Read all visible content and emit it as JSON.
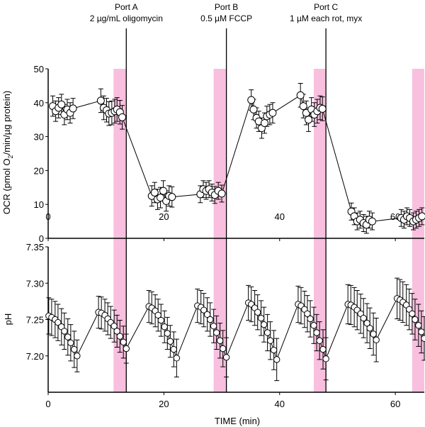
{
  "colors": {
    "injection_band": "#f9bfdf",
    "marker_fill": "#ffffff",
    "line": "#000000"
  },
  "ports": [
    {
      "name": "Port A",
      "label": "2 µg/mL oligomycin",
      "time": 13.5
    },
    {
      "name": "Port B",
      "label": "0.5 µM FCCP",
      "time": 30.8
    },
    {
      "name": "Port C",
      "label": "1 µM each rot, myx",
      "time": 48.0
    }
  ],
  "bands": [
    [
      11.3,
      13.5
    ],
    [
      28.6,
      30.8
    ],
    [
      45.9,
      48.0
    ],
    [
      62.9,
      65.0
    ]
  ],
  "chart_data": [
    {
      "type": "scatter",
      "ylabel_main": "OCR (pmol O",
      "ylabel_sub": "2",
      "ylabel_tail": "/min/µg protein)",
      "xlabel": "",
      "xlim": [
        0,
        65
      ],
      "ylim": [
        0,
        50
      ],
      "xticks": [
        "0",
        "20",
        "40",
        "60"
      ],
      "yticks": [
        "0",
        "10",
        "20",
        "30",
        "40",
        "50"
      ],
      "grid": false,
      "points": [
        [
          0.8,
          39,
          3
        ],
        [
          1.3,
          37.5,
          3
        ],
        [
          1.8,
          38.5,
          3
        ],
        [
          2.3,
          39.5,
          3
        ],
        [
          2.8,
          36.5,
          3
        ],
        [
          3.3,
          38,
          3
        ],
        [
          3.8,
          37,
          3
        ],
        [
          4.3,
          38.3,
          3
        ],
        [
          9.1,
          40.6,
          3.5
        ],
        [
          9.6,
          38.5,
          3.5
        ],
        [
          10.1,
          37.8,
          3.5
        ],
        [
          10.5,
          36.8,
          3.5
        ],
        [
          11.0,
          37.0,
          3.5
        ],
        [
          11.5,
          37.5,
          3.5
        ],
        [
          11.9,
          38.0,
          3.5
        ],
        [
          12.4,
          37.2,
          3.5
        ],
        [
          12.8,
          35.7,
          3.5
        ],
        [
          17.9,
          12.5,
          3
        ],
        [
          18.4,
          13.5,
          3
        ],
        [
          18.9,
          11.5,
          3
        ],
        [
          19.4,
          12,
          3
        ],
        [
          19.9,
          14,
          3
        ],
        [
          20.4,
          11,
          3
        ],
        [
          20.9,
          12.5,
          3
        ],
        [
          21.4,
          12.2,
          3
        ],
        [
          26.3,
          13,
          2.5
        ],
        [
          26.8,
          14.5,
          2.5
        ],
        [
          27.3,
          14,
          2.5
        ],
        [
          27.8,
          14.5,
          2.5
        ],
        [
          28.3,
          13.5,
          2.5
        ],
        [
          28.8,
          12.8,
          2.5
        ],
        [
          29.4,
          14,
          2.5
        ],
        [
          30.0,
          13.2,
          2.5
        ],
        [
          35.1,
          40.8,
          3
        ],
        [
          35.5,
          38,
          3
        ],
        [
          36.0,
          35.5,
          3
        ],
        [
          36.4,
          34.5,
          3
        ],
        [
          36.9,
          32.5,
          3
        ],
        [
          37.4,
          34,
          3
        ],
        [
          37.8,
          36,
          3
        ],
        [
          38.3,
          36.5,
          3
        ],
        [
          38.8,
          37,
          3
        ],
        [
          43.6,
          42.2,
          3.5
        ],
        [
          44.1,
          39,
          3.5
        ],
        [
          44.6,
          37,
          3.5
        ],
        [
          45.0,
          35,
          3.5
        ],
        [
          45.5,
          38,
          3.5
        ],
        [
          46.0,
          36.5,
          3.5
        ],
        [
          46.5,
          37.5,
          3.5
        ],
        [
          47.0,
          38.5,
          3.5
        ],
        [
          47.4,
          38.2,
          3.5
        ],
        [
          52.4,
          7.9,
          2.5
        ],
        [
          52.9,
          6.5,
          2.5
        ],
        [
          53.4,
          5,
          2.5
        ],
        [
          53.9,
          5.5,
          2.5
        ],
        [
          54.5,
          4.5,
          2.5
        ],
        [
          55.0,
          4,
          2.5
        ],
        [
          55.5,
          5.5,
          2.5
        ],
        [
          56.0,
          5,
          2.5
        ],
        [
          61.0,
          6,
          2.5
        ],
        [
          61.5,
          5.5,
          2.5
        ],
        [
          62.0,
          6.5,
          2.5
        ],
        [
          62.5,
          6,
          2.5
        ],
        [
          63.1,
          5,
          2.5
        ],
        [
          63.6,
          5.5,
          2.5
        ],
        [
          64.1,
          6,
          2.5
        ],
        [
          64.6,
          6.5,
          2.5
        ]
      ]
    },
    {
      "type": "scatter",
      "ylabel": "pH",
      "xlabel": "TIME (min)",
      "xlim": [
        0,
        65
      ],
      "ylim": [
        7.15,
        7.35
      ],
      "xticks": [
        "0",
        "20",
        "40",
        "60"
      ],
      "yticks": [
        "7.20",
        "7.25",
        "7.30",
        "7.35"
      ],
      "grid": false,
      "points": [
        [
          0.1,
          7.255,
          0.025
        ],
        [
          0.6,
          7.253,
          0.025
        ],
        [
          1.2,
          7.25,
          0.025
        ],
        [
          1.7,
          7.246,
          0.025
        ],
        [
          2.3,
          7.24,
          0.025
        ],
        [
          2.8,
          7.234,
          0.025
        ],
        [
          3.4,
          7.226,
          0.025
        ],
        [
          3.9,
          7.218,
          0.025
        ],
        [
          4.5,
          7.209,
          0.025
        ],
        [
          5.0,
          7.2,
          0.022
        ],
        [
          8.7,
          7.26,
          0.022
        ],
        [
          9.2,
          7.259,
          0.022
        ],
        [
          9.8,
          7.256,
          0.022
        ],
        [
          10.3,
          7.251,
          0.022
        ],
        [
          10.8,
          7.246,
          0.022
        ],
        [
          11.4,
          7.241,
          0.022
        ],
        [
          11.9,
          7.234,
          0.022
        ],
        [
          12.4,
          7.227,
          0.022
        ],
        [
          13.0,
          7.219,
          0.022
        ],
        [
          13.5,
          7.21,
          0.02
        ],
        [
          17.4,
          7.268,
          0.022
        ],
        [
          17.9,
          7.266,
          0.022
        ],
        [
          18.5,
          7.262,
          0.022
        ],
        [
          19.0,
          7.256,
          0.022
        ],
        [
          19.5,
          7.249,
          0.022
        ],
        [
          20.1,
          7.24,
          0.022
        ],
        [
          20.6,
          7.231,
          0.022
        ],
        [
          21.1,
          7.22,
          0.022
        ],
        [
          21.7,
          7.209,
          0.024
        ],
        [
          22.2,
          7.197,
          0.026
        ],
        [
          25.8,
          7.269,
          0.023
        ],
        [
          26.4,
          7.267,
          0.023
        ],
        [
          26.9,
          7.263,
          0.023
        ],
        [
          27.5,
          7.257,
          0.023
        ],
        [
          28.0,
          7.25,
          0.023
        ],
        [
          28.6,
          7.241,
          0.023
        ],
        [
          29.1,
          7.232,
          0.023
        ],
        [
          29.7,
          7.221,
          0.024
        ],
        [
          30.2,
          7.21,
          0.025
        ],
        [
          30.8,
          7.198,
          0.027
        ],
        [
          34.6,
          7.273,
          0.024
        ],
        [
          35.1,
          7.271,
          0.024
        ],
        [
          35.7,
          7.266,
          0.024
        ],
        [
          36.2,
          7.26,
          0.024
        ],
        [
          36.8,
          7.252,
          0.024
        ],
        [
          37.3,
          7.243,
          0.024
        ],
        [
          37.9,
          7.232,
          0.025
        ],
        [
          38.4,
          7.221,
          0.026
        ],
        [
          39.0,
          7.208,
          0.027
        ],
        [
          39.5,
          7.195,
          0.029
        ],
        [
          43.2,
          7.271,
          0.025
        ],
        [
          43.7,
          7.269,
          0.025
        ],
        [
          44.3,
          7.264,
          0.025
        ],
        [
          44.8,
          7.258,
          0.025
        ],
        [
          45.3,
          7.251,
          0.025
        ],
        [
          45.9,
          7.242,
          0.025
        ],
        [
          46.4,
          7.232,
          0.025
        ],
        [
          46.9,
          7.221,
          0.026
        ],
        [
          47.5,
          7.209,
          0.027
        ],
        [
          48.0,
          7.196,
          0.029
        ],
        [
          51.8,
          7.271,
          0.027
        ],
        [
          52.3,
          7.27,
          0.027
        ],
        [
          52.9,
          7.267,
          0.027
        ],
        [
          53.4,
          7.263,
          0.027
        ],
        [
          54.0,
          7.258,
          0.027
        ],
        [
          54.5,
          7.252,
          0.027
        ],
        [
          55.1,
          7.245,
          0.027
        ],
        [
          55.6,
          7.238,
          0.028
        ],
        [
          56.2,
          7.23,
          0.029
        ],
        [
          56.7,
          7.222,
          0.03
        ],
        [
          60.3,
          7.279,
          0.028
        ],
        [
          60.8,
          7.277,
          0.028
        ],
        [
          61.3,
          7.274,
          0.028
        ],
        [
          61.9,
          7.27,
          0.028
        ],
        [
          62.4,
          7.264,
          0.028
        ],
        [
          62.9,
          7.258,
          0.028
        ],
        [
          63.4,
          7.25,
          0.028
        ],
        [
          64.0,
          7.242,
          0.029
        ],
        [
          64.5,
          7.233,
          0.029
        ],
        [
          65.0,
          7.224,
          0.03
        ]
      ]
    }
  ]
}
